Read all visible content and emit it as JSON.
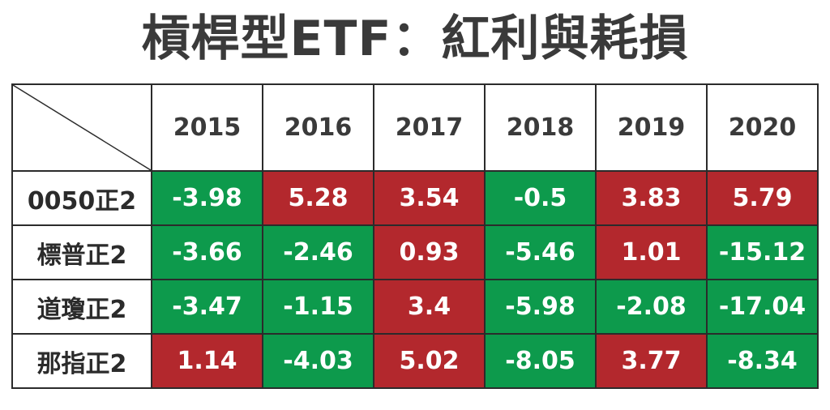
{
  "title": "槓桿型ETF：紅利與耗損",
  "colors": {
    "positive": "#b3282d",
    "negative": "#0d9a4c",
    "text_dark": "#3a3a3a",
    "border": "#2b2b2b"
  },
  "chart_data": {
    "type": "table",
    "title": "槓桿型ETF：紅利與耗損",
    "columns": [
      "2015",
      "2016",
      "2017",
      "2018",
      "2019",
      "2020"
    ],
    "rows": [
      {
        "label": "0050正2",
        "values": [
          "-3.98",
          "5.28",
          "3.54",
          "-0.5",
          "3.83",
          "5.79"
        ]
      },
      {
        "label": "標普正2",
        "values": [
          "-3.66",
          "-2.46",
          "0.93",
          "-5.46",
          "1.01",
          "-15.12"
        ]
      },
      {
        "label": "道瓊正2",
        "values": [
          "-3.47",
          "-1.15",
          "3.4",
          "-5.98",
          "-2.08",
          "-17.04"
        ]
      },
      {
        "label": "那指正2",
        "values": [
          "1.14",
          "-4.03",
          "5.02",
          "-8.05",
          "3.77",
          "-8.34"
        ]
      }
    ]
  }
}
